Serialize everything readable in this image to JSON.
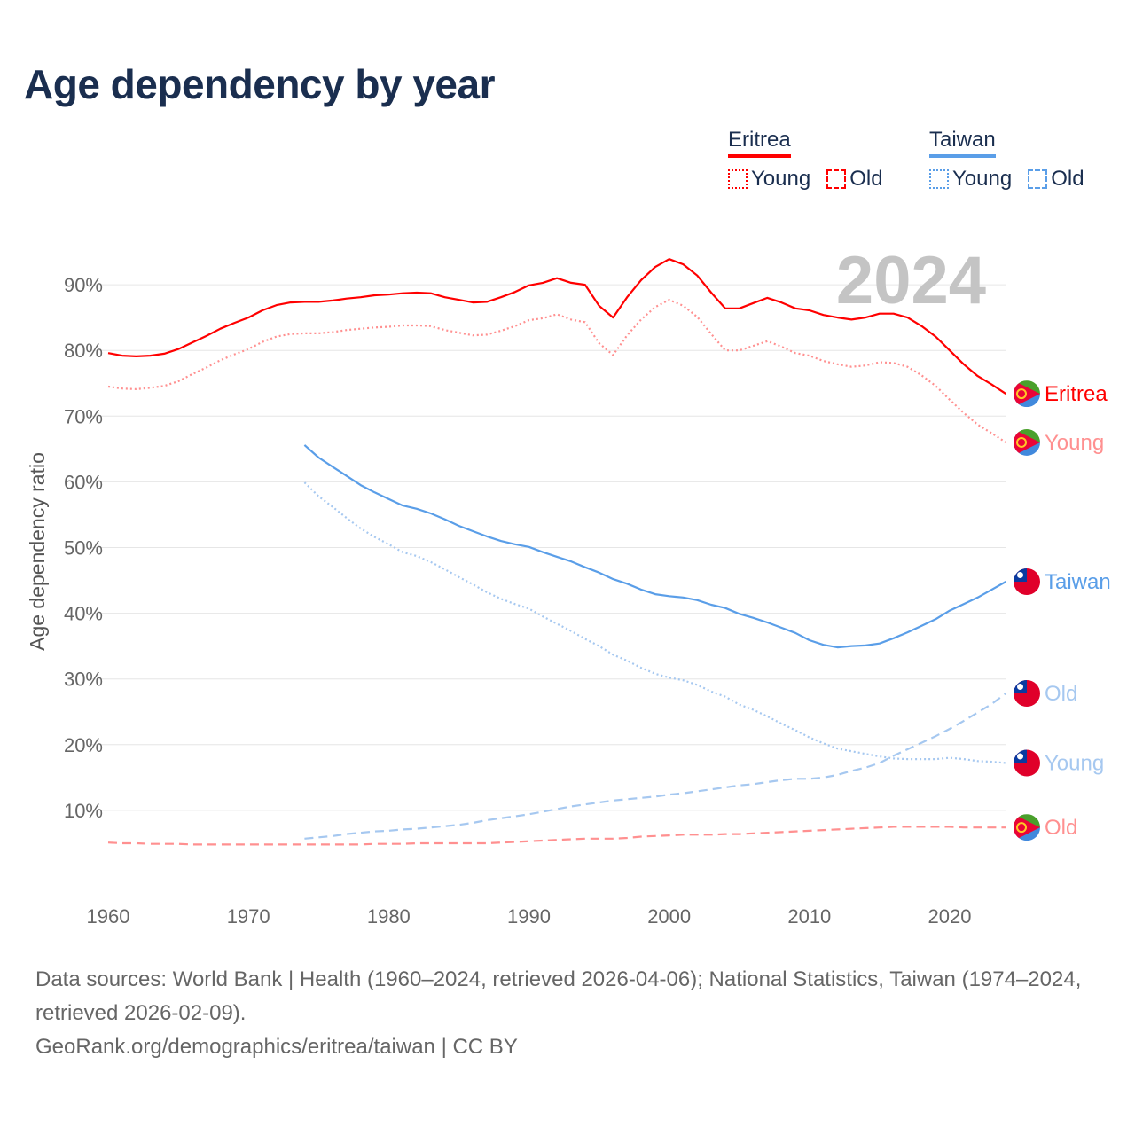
{
  "title": "Age dependency by year",
  "legend": {
    "groups": [
      {
        "name": "Eritrea",
        "color": "#ff0000",
        "items": [
          "Young",
          "Old"
        ]
      },
      {
        "name": "Taiwan",
        "color": "#5a9ee8",
        "items": [
          "Young",
          "Old"
        ]
      }
    ]
  },
  "year_label": "2024",
  "sources": "Data sources: World Bank | Health (1960–2024, retrieved 2026-04-06); National Statistics, Taiwan (1974–2024, retrieved 2026-02-09).",
  "attribution": "GeoRank.org/demographics/eritrea/taiwan | CC BY",
  "chart_data": {
    "type": "line",
    "title": "Age dependency by year",
    "xlabel": "",
    "ylabel": "Age dependency ratio",
    "xlim": [
      1960,
      2024
    ],
    "ylim": [
      0,
      95
    ],
    "xticks": [
      "1960",
      "1970",
      "1980",
      "1990",
      "2000",
      "2010",
      "2020"
    ],
    "yticks": [
      "10%",
      "20%",
      "30%",
      "40%",
      "50%",
      "60%",
      "70%",
      "80%",
      "90%"
    ],
    "grid": true,
    "series": [
      {
        "name": "Eritrea",
        "end_label": "Eritrea",
        "country": "eritrea",
        "style": "solid",
        "color": "#ff0000",
        "start": 1960,
        "values": [
          79.6,
          79.2,
          79.1,
          79.2,
          79.5,
          80.2,
          81.2,
          82.2,
          83.3,
          84.2,
          85.0,
          86.1,
          86.9,
          87.3,
          87.4,
          87.4,
          87.6,
          87.9,
          88.1,
          88.4,
          88.5,
          88.7,
          88.8,
          88.7,
          88.1,
          87.7,
          87.3,
          87.4,
          88.1,
          88.9,
          89.9,
          90.3,
          91.0,
          90.3,
          90.0,
          86.8,
          85.0,
          88.1,
          90.7,
          92.7,
          93.9,
          93.1,
          91.4,
          88.8,
          86.4,
          86.4,
          87.2,
          88.0,
          87.3,
          86.4,
          86.1,
          85.4,
          85.0,
          84.7,
          85.0,
          85.6,
          85.6,
          85.0,
          83.7,
          82.1,
          80.0,
          77.9,
          76.1,
          74.8,
          73.4
        ]
      },
      {
        "name": "Eritrea Young",
        "end_label": "Young",
        "country": "eritrea",
        "style": "dotted",
        "color": "#ff9090",
        "start": 1960,
        "values": [
          74.5,
          74.2,
          74.1,
          74.3,
          74.6,
          75.3,
          76.4,
          77.4,
          78.5,
          79.4,
          80.2,
          81.3,
          82.1,
          82.5,
          82.6,
          82.6,
          82.8,
          83.1,
          83.3,
          83.5,
          83.6,
          83.8,
          83.8,
          83.7,
          83.1,
          82.7,
          82.3,
          82.4,
          83.0,
          83.7,
          84.6,
          84.9,
          85.5,
          84.7,
          84.3,
          81.1,
          79.3,
          82.3,
          84.7,
          86.6,
          87.7,
          86.8,
          85.1,
          82.5,
          80.0,
          80.0,
          80.7,
          81.4,
          80.6,
          79.6,
          79.2,
          78.4,
          77.9,
          77.5,
          77.7,
          78.2,
          78.1,
          77.5,
          76.2,
          74.6,
          72.5,
          70.5,
          68.7,
          67.4,
          66.0
        ]
      },
      {
        "name": "Eritrea Old",
        "end_label": "Old",
        "country": "eritrea",
        "style": "dashed",
        "color": "#ff9090",
        "start": 1960,
        "values": [
          5.1,
          5.0,
          5.0,
          4.9,
          4.9,
          4.9,
          4.8,
          4.8,
          4.8,
          4.8,
          4.8,
          4.8,
          4.8,
          4.8,
          4.8,
          4.8,
          4.8,
          4.8,
          4.8,
          4.9,
          4.9,
          4.9,
          5.0,
          5.0,
          5.0,
          5.0,
          5.0,
          5.0,
          5.1,
          5.2,
          5.3,
          5.4,
          5.5,
          5.6,
          5.7,
          5.7,
          5.7,
          5.8,
          6.0,
          6.1,
          6.2,
          6.3,
          6.3,
          6.3,
          6.4,
          6.4,
          6.5,
          6.6,
          6.7,
          6.8,
          6.9,
          7.0,
          7.1,
          7.2,
          7.3,
          7.4,
          7.5,
          7.5,
          7.5,
          7.5,
          7.5,
          7.4,
          7.4,
          7.4,
          7.4
        ]
      },
      {
        "name": "Taiwan",
        "end_label": "Taiwan",
        "country": "taiwan",
        "style": "solid",
        "color": "#5a9ee8",
        "start": 1974,
        "values": [
          65.6,
          63.7,
          62.3,
          60.9,
          59.5,
          58.4,
          57.4,
          56.4,
          55.9,
          55.2,
          54.3,
          53.3,
          52.5,
          51.7,
          51.0,
          50.5,
          50.1,
          49.3,
          48.6,
          47.9,
          47.0,
          46.2,
          45.2,
          44.5,
          43.6,
          42.9,
          42.6,
          42.4,
          42.0,
          41.3,
          40.8,
          39.9,
          39.3,
          38.6,
          37.8,
          37.0,
          35.9,
          35.2,
          34.8,
          35.0,
          35.1,
          35.4,
          36.2,
          37.1,
          38.1,
          39.1,
          40.4,
          41.4,
          42.4,
          43.6,
          44.8
        ]
      },
      {
        "name": "Taiwan Old",
        "end_label": "Old",
        "country": "taiwan",
        "style": "dashed",
        "color": "#a6c8f0",
        "start": 1974,
        "values": [
          5.7,
          5.9,
          6.1,
          6.4,
          6.6,
          6.8,
          6.9,
          7.1,
          7.2,
          7.4,
          7.6,
          7.8,
          8.1,
          8.5,
          8.8,
          9.1,
          9.4,
          9.8,
          10.2,
          10.6,
          10.9,
          11.2,
          11.5,
          11.7,
          11.9,
          12.1,
          12.4,
          12.6,
          12.9,
          13.2,
          13.5,
          13.8,
          14.0,
          14.3,
          14.6,
          14.8,
          14.8,
          15.0,
          15.4,
          16.0,
          16.5,
          17.2,
          18.3,
          19.3,
          20.3,
          21.3,
          22.4,
          23.6,
          24.9,
          26.2,
          27.8
        ]
      },
      {
        "name": "Taiwan Young",
        "end_label": "Young",
        "country": "taiwan",
        "style": "dotted",
        "color": "#a6c8f0",
        "start": 1974,
        "values": [
          59.9,
          57.8,
          56.2,
          54.5,
          52.9,
          51.6,
          50.5,
          49.3,
          48.7,
          47.8,
          46.7,
          45.5,
          44.4,
          43.2,
          42.2,
          41.4,
          40.7,
          39.5,
          38.4,
          37.3,
          36.1,
          35.0,
          33.7,
          32.8,
          31.7,
          30.8,
          30.2,
          29.8,
          29.1,
          28.1,
          27.3,
          26.1,
          25.3,
          24.3,
          23.2,
          22.2,
          21.1,
          20.2,
          19.4,
          19.0,
          18.6,
          18.2,
          17.9,
          17.8,
          17.8,
          17.8,
          18.0,
          17.8,
          17.5,
          17.4,
          17.2
        ]
      }
    ]
  }
}
